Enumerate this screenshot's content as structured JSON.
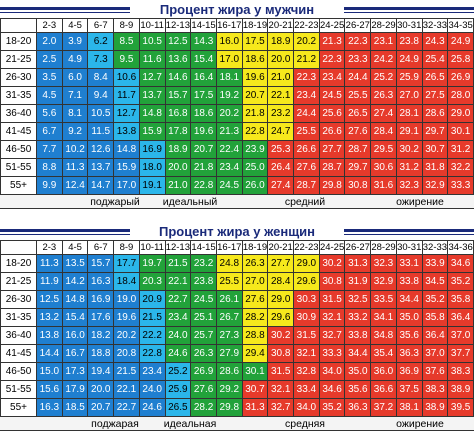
{
  "men": {
    "title": "Процент жира у мужчин",
    "columns": [
      "2-3",
      "4-5",
      "6-7",
      "8-9",
      "10-11",
      "12-13",
      "14-15",
      "16-17",
      "18-19",
      "20-21",
      "22-23",
      "24-25",
      "26-27",
      "28-29",
      "30-31",
      "32-33",
      "34-35"
    ],
    "rows": [
      {
        "age": "18-20",
        "values": [
          "2.0",
          "3.9",
          "6.2",
          "8.5",
          "10.5",
          "12.5",
          "14.3",
          "16.0",
          "17.5",
          "18.9",
          "20.2",
          "21.3",
          "22.3",
          "23.1",
          "23.8",
          "24.3",
          "24.9"
        ]
      },
      {
        "age": "21-25",
        "values": [
          "2.5",
          "4.9",
          "7.3",
          "9.5",
          "11.6",
          "13.6",
          "15.4",
          "17.0",
          "18.6",
          "20.0",
          "21.2",
          "22.3",
          "23.3",
          "24.2",
          "24.9",
          "25.4",
          "25.8"
        ]
      },
      {
        "age": "26-30",
        "values": [
          "3.5",
          "6.0",
          "8.4",
          "10.6",
          "12.7",
          "14.6",
          "16.4",
          "18.1",
          "19.6",
          "21.0",
          "22.3",
          "23.4",
          "24.4",
          "25.2",
          "25.9",
          "26.5",
          "26.9"
        ]
      },
      {
        "age": "31-35",
        "values": [
          "4.5",
          "7.1",
          "9.4",
          "11.7",
          "13.7",
          "15.7",
          "17.5",
          "19.2",
          "20.7",
          "22.1",
          "23.4",
          "24.5",
          "25.5",
          "26.3",
          "27.0",
          "27.5",
          "28.0"
        ]
      },
      {
        "age": "36-40",
        "values": [
          "5.6",
          "8.1",
          "10.5",
          "12.7",
          "14.8",
          "16.8",
          "18.6",
          "20.2",
          "21.8",
          "23.2",
          "24.4",
          "25.6",
          "26.5",
          "27.4",
          "28.1",
          "28.6",
          "29.0"
        ]
      },
      {
        "age": "41-45",
        "values": [
          "6.7",
          "9.2",
          "11.5",
          "13.8",
          "15.9",
          "17.8",
          "19.6",
          "21.3",
          "22.8",
          "24.7",
          "25.5",
          "26.6",
          "27.6",
          "28.4",
          "29.1",
          "29.7",
          "30.1"
        ]
      },
      {
        "age": "46-50",
        "values": [
          "7.7",
          "10.2",
          "12.6",
          "14.8",
          "16.9",
          "18.9",
          "20.7",
          "22.4",
          "23.9",
          "25.3",
          "26.6",
          "27.7",
          "28.7",
          "29.5",
          "30.2",
          "30.7",
          "31.2"
        ]
      },
      {
        "age": "51-55",
        "values": [
          "8.8",
          "11.3",
          "13.7",
          "15.9",
          "18.0",
          "20.0",
          "21.8",
          "23.4",
          "25.0",
          "26.4",
          "27.6",
          "28.7",
          "29.7",
          "30.6",
          "31.2",
          "31.8",
          "32.2"
        ]
      },
      {
        "age": "55+",
        "values": [
          "9.9",
          "12.4",
          "14.7",
          "17.0",
          "19.1",
          "21.0",
          "22.8",
          "24.5",
          "26.0",
          "27.4",
          "28.7",
          "29.8",
          "30.8",
          "31.6",
          "32.3",
          "32.9",
          "33.3"
        ]
      }
    ],
    "zones": [
      "поджарый",
      "идеальный",
      "средний",
      "ожирение"
    ]
  },
  "women": {
    "title": "Процент жира у женщин",
    "columns": [
      "2-3",
      "4-5",
      "6-7",
      "8-9",
      "10-11",
      "12-13",
      "14-15",
      "16-17",
      "18-19",
      "20-21",
      "22-23",
      "24-25",
      "26-27",
      "28-29",
      "30-31",
      "32-33",
      "34-36"
    ],
    "rows": [
      {
        "age": "18-20",
        "values": [
          "11.3",
          "13.5",
          "15.7",
          "17.7",
          "19.7",
          "21.5",
          "23.2",
          "24.8",
          "26.3",
          "27.7",
          "29.0",
          "30.2",
          "31.3",
          "32.3",
          "33.1",
          "33.9",
          "34.6"
        ]
      },
      {
        "age": "21-25",
        "values": [
          "11.9",
          "14.2",
          "16.3",
          "18.4",
          "20.3",
          "22.1",
          "23.8",
          "25.5",
          "27.0",
          "28.4",
          "29.6",
          "30.8",
          "31.9",
          "32.9",
          "33.8",
          "34.5",
          "35.2"
        ]
      },
      {
        "age": "26-30",
        "values": [
          "12.5",
          "14.8",
          "16.9",
          "19.0",
          "20.9",
          "22.7",
          "24.5",
          "26.1",
          "27.6",
          "29.0",
          "30.3",
          "31.5",
          "32.5",
          "33.5",
          "34.4",
          "35.2",
          "35.8"
        ]
      },
      {
        "age": "31-35",
        "values": [
          "13.2",
          "15.4",
          "17.6",
          "19.6",
          "21.5",
          "23.4",
          "25.1",
          "26.7",
          "28.2",
          "29.6",
          "30.9",
          "32.1",
          "33.2",
          "34.1",
          "35.0",
          "35.8",
          "36.4"
        ]
      },
      {
        "age": "36-40",
        "values": [
          "13.8",
          "16.0",
          "18.2",
          "20.2",
          "22.2",
          "24.0",
          "25.7",
          "27.3",
          "28.8",
          "30.2",
          "31.5",
          "32.7",
          "33.8",
          "34.8",
          "35.6",
          "36.4",
          "37.0"
        ]
      },
      {
        "age": "41-45",
        "values": [
          "14.4",
          "16.7",
          "18.8",
          "20.8",
          "22.8",
          "24.6",
          "26.3",
          "27.9",
          "29.4",
          "30.8",
          "32.1",
          "33.3",
          "34.4",
          "35.4",
          "36.3",
          "37.0",
          "37.7"
        ]
      },
      {
        "age": "46-50",
        "values": [
          "15.0",
          "17.3",
          "19.4",
          "21.5",
          "23.4",
          "25.2",
          "26.9",
          "28.6",
          "30.1",
          "31.5",
          "32.8",
          "34.0",
          "35.0",
          "36.0",
          "36.9",
          "37.6",
          "38.3"
        ]
      },
      {
        "age": "51-55",
        "values": [
          "15.6",
          "17.9",
          "20.0",
          "22.1",
          "24.0",
          "25.9",
          "27.6",
          "29.2",
          "30.7",
          "32.1",
          "33.4",
          "34.6",
          "35.6",
          "36.6",
          "37.5",
          "38.3",
          "38.9"
        ]
      },
      {
        "age": "55+",
        "values": [
          "16.3",
          "18.5",
          "20.7",
          "22.7",
          "24.6",
          "26.5",
          "28.2",
          "29.8",
          "31.3",
          "32.7",
          "34.0",
          "35.2",
          "36.3",
          "37.2",
          "38.1",
          "38.9",
          "39.5"
        ]
      }
    ],
    "zones": [
      "поджарая",
      "идеальная",
      "средняя",
      "ожирение"
    ]
  }
}
